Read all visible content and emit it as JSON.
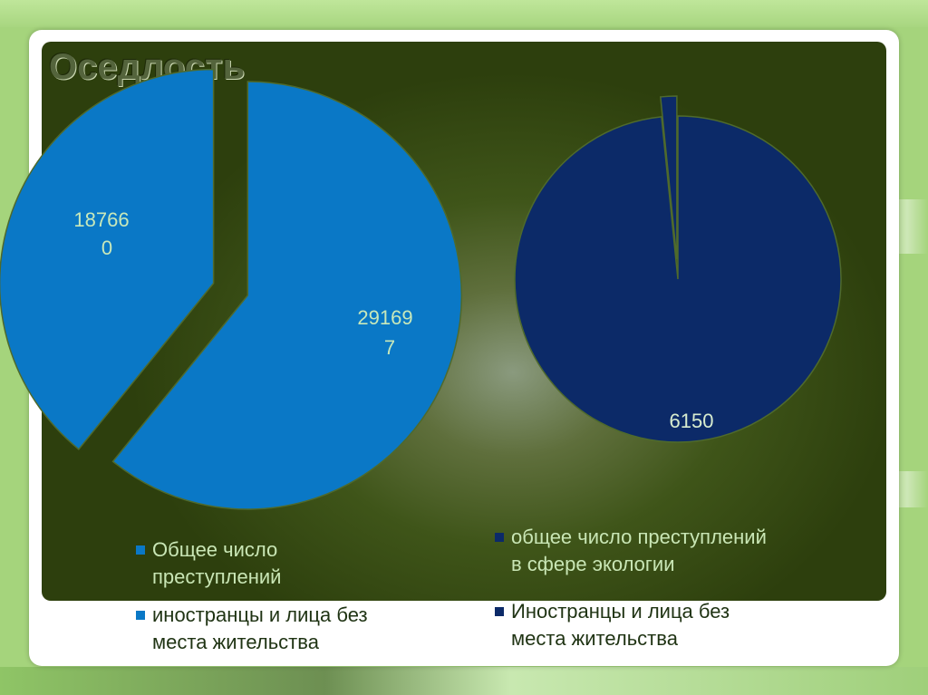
{
  "slide": {
    "title": "Оседлость"
  },
  "colors": {
    "series1": "#0a78c6",
    "series2": "#0c2a68",
    "slice_edge": "#4f6a2c"
  },
  "chart_data": [
    {
      "type": "pie",
      "exploded": true,
      "categories": [
        "Общее число преступлений",
        "иностранцы и лица без места жительства"
      ],
      "values": [
        291697,
        187660
      ],
      "data_labels": [
        {
          "line1": "29169",
          "line2": "7"
        },
        {
          "line1": "18766",
          "line2": "0"
        }
      ],
      "legend": [
        {
          "line1": "Общее число",
          "line2": "преступлений"
        },
        {
          "line1": "иностранцы и лица без",
          "line2": "места жительства"
        }
      ],
      "legend_position": "bottom"
    },
    {
      "type": "pie",
      "exploded": true,
      "categories": [
        "общее число преступлений в сфере экологии",
        "Иностранцы и лица без места жительства"
      ],
      "values": [
        6150,
        100
      ],
      "data_labels": [
        {
          "line1": "6150"
        }
      ],
      "legend": [
        {
          "line1": "общее число преступлений",
          "line2": "в сфере экологии"
        },
        {
          "line1": "Иностранцы и лица без",
          "line2": "места жительства"
        }
      ],
      "legend_position": "bottom"
    }
  ]
}
